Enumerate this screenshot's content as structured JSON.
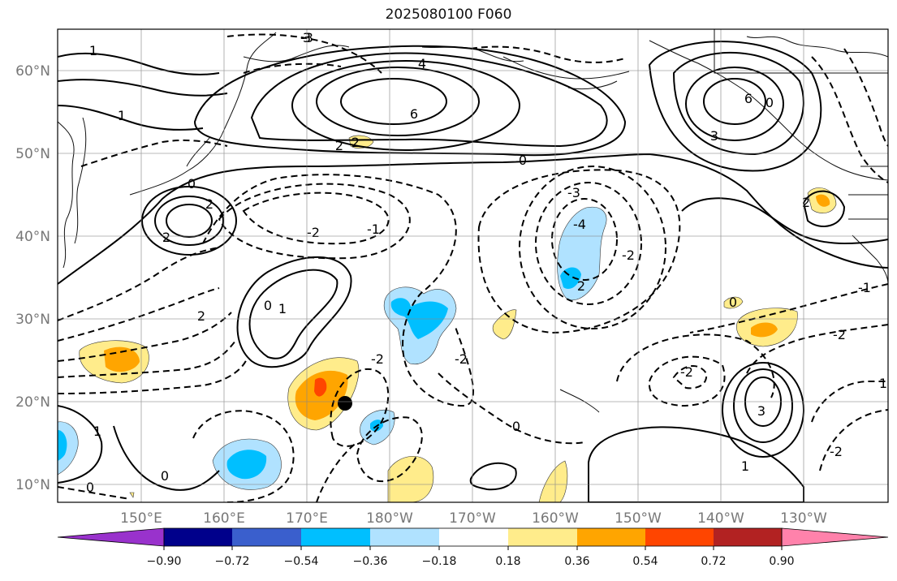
{
  "title": "2025080100 F060",
  "map": {
    "lat_labels": [
      "60°N",
      "50°N",
      "40°N",
      "30°N",
      "20°N",
      "10°N"
    ],
    "lon_labels": [
      "150°E",
      "160°E",
      "170°E",
      "180°W",
      "170°W",
      "160°W",
      "150°W",
      "140°W",
      "130°W"
    ],
    "contour_labels": [
      "3",
      "4",
      "6",
      "6",
      "3",
      "2",
      "2",
      "1",
      "1",
      "2",
      "0",
      "2",
      "2",
      "-2",
      "-4",
      "-2",
      "2",
      "0",
      "-1",
      "1",
      "-2",
      "-2",
      "0",
      "-2",
      "-3",
      "-3",
      "2",
      "-2",
      "0",
      "0",
      "1",
      "3",
      "-1",
      "-2",
      "0",
      "1",
      "0",
      "1",
      "0"
    ],
    "marker": {
      "name": "storm-center",
      "lat": 20,
      "lon": 175
    }
  },
  "colorbar": {
    "ticks": [
      "−0.90",
      "−0.72",
      "−0.54",
      "−0.36",
      "−0.18",
      "0.18",
      "0.36",
      "0.54",
      "0.72",
      "0.90"
    ],
    "colors": [
      "#9932cc",
      "#00008b",
      "#3a5fcd",
      "#00bfff",
      "#b0e2ff",
      "#ffffff",
      "#ffec8b",
      "#ffa500",
      "#ff4500",
      "#b22222",
      "#ff82ab"
    ]
  }
}
